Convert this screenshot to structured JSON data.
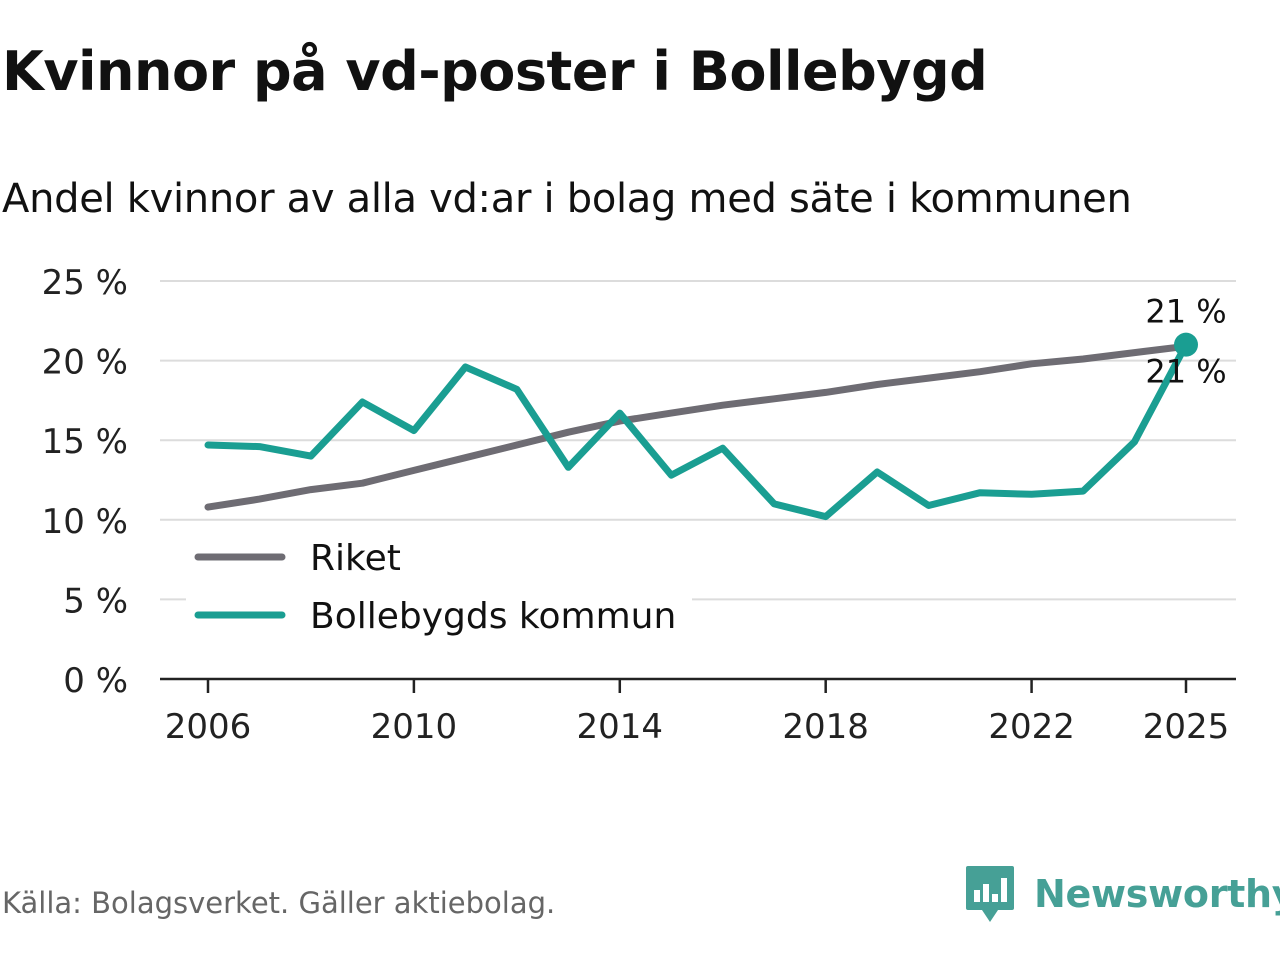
{
  "title": "Kvinnor på vd-poster i Bollebygd",
  "subtitle": "Andel kvinnor av alla vd:ar i bolag med säte i kommunen",
  "source": "Källa: Bolagsverket. Gäller aktiebolag.",
  "brand": {
    "name": "Newsworthy",
    "color": "#46a096",
    "icon": "newsworthy-logo-icon"
  },
  "chart_data": {
    "type": "line",
    "title": "Kvinnor på vd-poster i Bollebygd",
    "xlabel": "",
    "ylabel": "",
    "xlim": [
      2006,
      2025
    ],
    "ylim": [
      0,
      25
    ],
    "grid": true,
    "legend_position": "lower-left",
    "x": [
      2006,
      2007,
      2008,
      2009,
      2010,
      2011,
      2012,
      2013,
      2014,
      2015,
      2016,
      2017,
      2018,
      2019,
      2020,
      2021,
      2022,
      2023,
      2024,
      2025
    ],
    "x_ticks": [
      2006,
      2010,
      2014,
      2018,
      2022,
      2025
    ],
    "x_tick_labels": [
      "2006",
      "2010",
      "2014",
      "2018",
      "2022",
      "2025"
    ],
    "y_ticks": [
      0,
      5,
      10,
      15,
      20,
      25
    ],
    "y_tick_labels": [
      "0 %",
      "5 %",
      "10 %",
      "15 %",
      "20 %",
      "25 %"
    ],
    "series": [
      {
        "name": "Riket",
        "color": "#6e6c73",
        "values": [
          10.8,
          11.3,
          11.9,
          12.3,
          13.1,
          13.9,
          14.7,
          15.5,
          16.2,
          16.7,
          17.2,
          17.6,
          18.0,
          18.5,
          18.9,
          19.3,
          19.8,
          20.1,
          20.5,
          20.9
        ]
      },
      {
        "name": "Bollebygds kommun",
        "color": "#1a9e92",
        "values": [
          14.7,
          14.6,
          14.0,
          17.4,
          15.6,
          19.6,
          18.2,
          13.3,
          16.7,
          12.8,
          14.5,
          11.0,
          10.2,
          13.0,
          10.9,
          11.7,
          11.6,
          11.8,
          14.9,
          21.0
        ]
      }
    ],
    "annotations": [
      {
        "series": "Bollebygds kommun",
        "x": 2025,
        "label": "21 %"
      },
      {
        "series": "Riket",
        "x": 2025,
        "label": "21 %"
      }
    ]
  }
}
